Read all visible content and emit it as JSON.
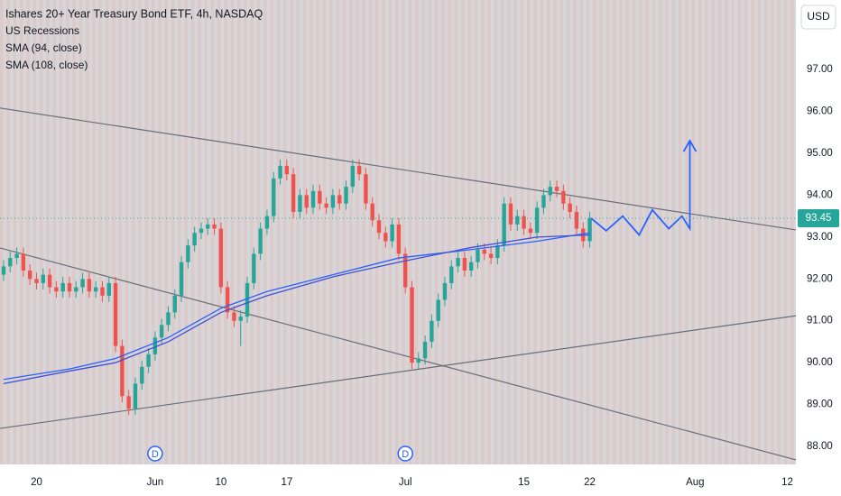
{
  "chart_data": {
    "type": "candlestick",
    "title": "Ishares 20+ Year Treasury Bond ETF, 4h, NASDAQ",
    "indicators": [
      "US Recessions"
    ],
    "currency": "USD",
    "up_color": "#26a69a",
    "down_color": "#ef5350",
    "open": [
      92.1,
      92.3,
      92.5,
      92.6,
      92.2,
      92.0,
      91.9,
      92.1,
      91.8,
      91.7,
      91.9,
      91.7,
      91.8,
      92.0,
      91.7,
      91.8,
      91.6,
      91.9,
      90.4,
      89.2,
      88.9,
      89.5,
      89.9,
      90.2,
      90.6,
      90.9,
      91.2,
      91.6,
      92.4,
      92.8,
      93.1,
      93.2,
      93.3,
      93.2,
      91.8,
      91.2,
      91.0,
      91.1,
      91.9,
      92.6,
      93.2,
      93.5,
      94.4,
      94.7,
      94.5,
      93.6,
      94.0,
      93.7,
      94.1,
      93.8,
      93.7,
      94.0,
      93.8,
      94.2,
      94.7,
      94.5,
      93.8,
      93.4,
      93.1,
      92.9,
      93.3,
      92.6,
      91.8,
      90.0,
      90.1,
      90.5,
      91.0,
      91.5,
      91.9,
      92.3,
      92.5,
      92.2,
      92.4,
      92.7,
      92.6,
      92.5,
      92.8,
      93.8,
      93.3,
      93.5,
      93.2,
      93.1,
      93.7,
      94.0,
      94.2,
      94.1,
      93.8,
      93.6,
      93.2,
      92.9
    ],
    "high": [
      92.45,
      92.65,
      92.75,
      92.75,
      92.35,
      92.15,
      92.25,
      92.25,
      91.95,
      92.05,
      92.05,
      91.95,
      92.15,
      92.15,
      91.95,
      91.95,
      92.05,
      92.05,
      90.55,
      89.35,
      89.65,
      90.05,
      90.35,
      90.75,
      91.05,
      91.35,
      91.75,
      92.55,
      92.95,
      93.25,
      93.35,
      93.45,
      93.45,
      93.35,
      91.95,
      91.35,
      91.25,
      92.05,
      92.75,
      93.35,
      93.65,
      94.55,
      94.85,
      94.85,
      94.65,
      94.15,
      94.15,
      94.25,
      94.25,
      93.95,
      94.15,
      94.15,
      94.35,
      94.85,
      94.85,
      94.65,
      93.95,
      93.55,
      93.25,
      93.45,
      93.45,
      92.75,
      91.95,
      90.25,
      90.65,
      91.15,
      91.65,
      92.05,
      92.45,
      92.65,
      92.65,
      92.55,
      92.85,
      92.85,
      92.75,
      92.95,
      93.95,
      93.95,
      93.65,
      93.65,
      93.35,
      93.85,
      94.15,
      94.35,
      94.35,
      94.25,
      93.95,
      93.75,
      93.35,
      93.6
    ],
    "low": [
      91.95,
      92.15,
      92.35,
      92.05,
      91.85,
      91.75,
      91.75,
      91.65,
      91.55,
      91.55,
      91.55,
      91.55,
      91.65,
      91.55,
      91.55,
      91.45,
      91.45,
      90.25,
      89.05,
      88.75,
      88.75,
      89.35,
      89.75,
      90.05,
      90.45,
      90.75,
      91.05,
      91.45,
      92.25,
      92.65,
      92.95,
      93.05,
      93.05,
      91.65,
      91.05,
      90.85,
      90.4,
      90.95,
      91.75,
      92.45,
      93.05,
      93.35,
      94.25,
      94.35,
      93.45,
      93.45,
      93.55,
      93.55,
      93.65,
      93.55,
      93.55,
      93.65,
      93.65,
      94.05,
      94.35,
      93.65,
      93.25,
      92.95,
      92.75,
      92.75,
      92.45,
      91.65,
      89.85,
      89.85,
      89.95,
      90.35,
      90.85,
      91.35,
      91.75,
      92.15,
      92.05,
      92.05,
      92.25,
      92.45,
      92.35,
      92.35,
      92.65,
      93.15,
      93.15,
      93.05,
      92.95,
      92.95,
      93.55,
      93.85,
      93.95,
      93.65,
      93.45,
      93.05,
      92.75,
      92.75
    ],
    "close": [
      92.3,
      92.5,
      92.6,
      92.2,
      92.0,
      91.9,
      92.1,
      91.8,
      91.7,
      91.9,
      91.7,
      91.8,
      92.0,
      91.7,
      91.8,
      91.6,
      91.9,
      90.4,
      89.2,
      88.9,
      89.5,
      89.9,
      90.2,
      90.6,
      90.9,
      91.2,
      91.6,
      92.4,
      92.8,
      93.1,
      93.2,
      93.3,
      93.2,
      91.8,
      91.2,
      91.0,
      91.1,
      91.9,
      92.6,
      93.2,
      93.5,
      94.4,
      94.7,
      94.5,
      93.6,
      94.0,
      93.7,
      94.1,
      93.8,
      93.7,
      94.0,
      93.8,
      94.2,
      94.7,
      94.5,
      93.8,
      93.4,
      93.1,
      92.9,
      93.3,
      92.6,
      91.8,
      90.0,
      90.1,
      90.5,
      91.0,
      91.5,
      91.9,
      92.3,
      92.5,
      92.2,
      92.4,
      92.7,
      92.6,
      92.5,
      92.8,
      93.8,
      93.3,
      93.5,
      93.2,
      93.1,
      93.7,
      94.0,
      94.2,
      94.1,
      93.8,
      93.6,
      93.2,
      92.9,
      93.45
    ],
    "series": [
      {
        "name": "SMA (94, close)",
        "color": "#2962ff",
        "x": [
          0,
          10,
          17,
          25,
          33,
          40,
          50,
          60,
          71,
          81,
          89
        ],
        "values": [
          89.6,
          89.85,
          90.1,
          90.6,
          91.3,
          91.7,
          92.1,
          92.5,
          92.7,
          92.9,
          93.1
        ]
      },
      {
        "name": "SMA (108, close)",
        "color": "#3f4fd6",
        "x": [
          0,
          10,
          17,
          25,
          33,
          40,
          50,
          60,
          71,
          81,
          89
        ],
        "values": [
          89.5,
          89.8,
          90.0,
          90.5,
          91.2,
          91.6,
          92.05,
          92.4,
          92.75,
          93.0,
          93.05
        ]
      }
    ],
    "trendlines": [
      {
        "x": [
          -0.55,
          120.3
        ],
        "values": [
          96.08,
          93.17
        ]
      },
      {
        "x": [
          -0.55,
          120.3
        ],
        "values": [
          88.43,
          91.12
        ]
      },
      {
        "x": [
          -0.55,
          120.3
        ],
        "values": [
          92.74,
          87.68
        ]
      }
    ],
    "projection": {
      "color": "#2962ff",
      "x": [
        89.2,
        91.5,
        94,
        96.5,
        98.5,
        101,
        103,
        104.2,
        104.2
      ],
      "values": [
        93.45,
        93.15,
        93.5,
        93.05,
        93.65,
        93.2,
        93.5,
        93.2,
        95.3
      ]
    },
    "dividends": [
      {
        "x": 23,
        "label": "D"
      },
      {
        "x": 61,
        "label": "D"
      }
    ],
    "xlim": [
      -0.55,
      120.3
    ],
    "ylim": [
      87.57,
      98.66
    ],
    "xticks": [
      {
        "value": 5,
        "label": "20"
      },
      {
        "value": 23,
        "label": "Jun"
      },
      {
        "value": 33,
        "label": "10"
      },
      {
        "value": 43,
        "label": "17"
      },
      {
        "value": 61,
        "label": "Jul"
      },
      {
        "value": 79,
        "label": "15"
      },
      {
        "value": 89,
        "label": "22"
      },
      {
        "value": 105,
        "label": "Aug"
      },
      {
        "value": 119,
        "label": "12"
      }
    ],
    "yticks": [
      {
        "value": 88,
        "label": "88.00"
      },
      {
        "value": 89,
        "label": "89.00"
      },
      {
        "value": 90,
        "label": "90.00"
      },
      {
        "value": 91,
        "label": "91.00"
      },
      {
        "value": 92,
        "label": "92.00"
      },
      {
        "value": 93,
        "label": "93.00"
      },
      {
        "value": 94,
        "label": "94.00"
      },
      {
        "value": 95,
        "label": "95.00"
      },
      {
        "value": 96,
        "label": "96.00"
      },
      {
        "value": 97,
        "label": "97.00"
      }
    ]
  }
}
